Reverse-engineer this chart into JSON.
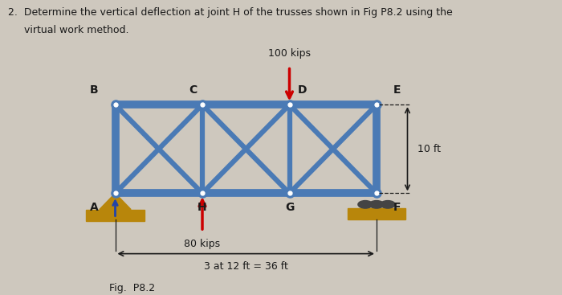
{
  "bg_color": "#cec8be",
  "truss_color": "#4a7ab5",
  "truss_lw": 7,
  "inner_lw": 4.5,
  "text_color": "#1a1a1a",
  "red_color": "#cc0000",
  "support_color": "#b8860b",
  "blue_arrow_color": "#2244aa",
  "title_line1": "2.  Determine the vertical deflection at joint H of the trusses shown in Fig P8.2 using the",
  "title_line2": "     virtual work method.",
  "fig_label": "Fig.  P8.2",
  "label_100kips": "100 kips",
  "label_80kips": "80 kips",
  "label_span": "3 at 12 ft = 36 ft",
  "label_height": "10 ft",
  "ox": 0.205,
  "oy": 0.345,
  "pw": 0.155,
  "ph": 0.3
}
